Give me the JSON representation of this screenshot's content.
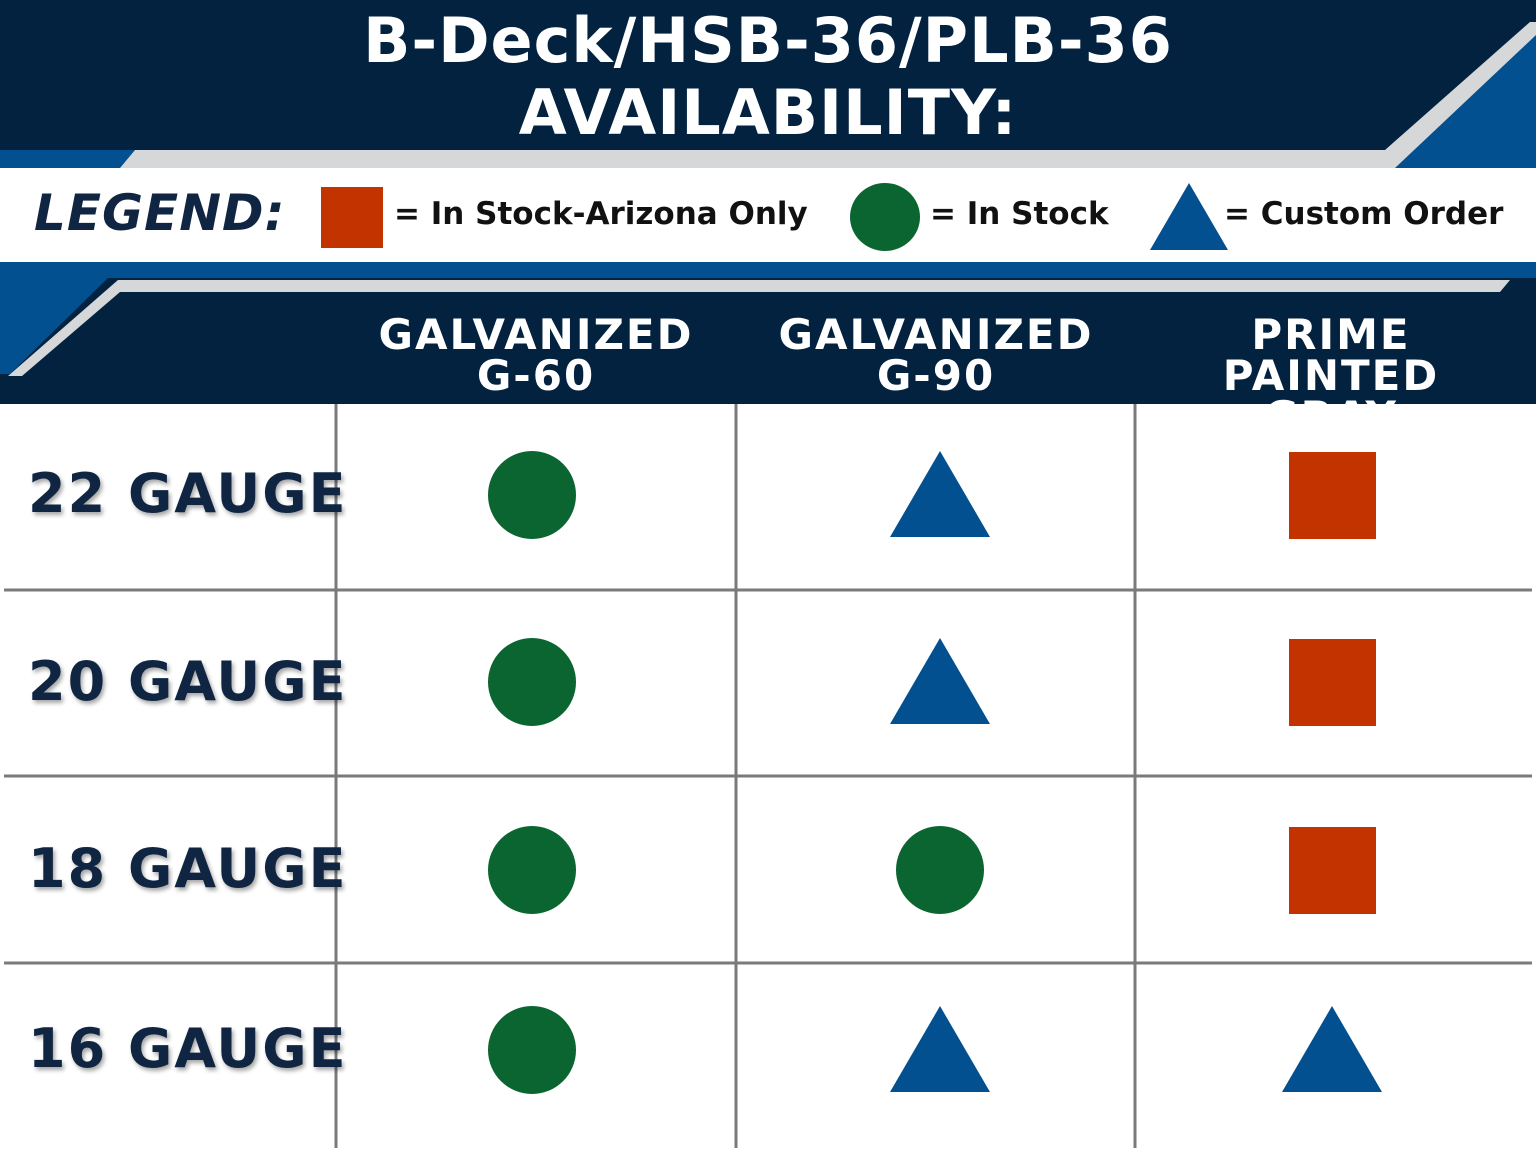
{
  "title": {
    "line1": "B-Deck/HSB-36/PLB-36",
    "line2": "AVAILABILITY:"
  },
  "legend": {
    "label": "LEGEND:",
    "items": [
      {
        "symbol": "square-icon",
        "color": "#c23300",
        "text": "= In Stock-Arizona Only"
      },
      {
        "symbol": "circle-icon",
        "color": "#0b6530",
        "text": "= In Stock"
      },
      {
        "symbol": "triangle-icon",
        "color": "#02508f",
        "text": "= Custom Order"
      }
    ]
  },
  "columns": [
    {
      "line1": "GALVANIZED",
      "line2": "G-60"
    },
    {
      "line1": "GALVANIZED",
      "line2": "G-90"
    },
    {
      "line1": "PRIME PAINTED",
      "line2": "GRAY"
    }
  ],
  "rows": [
    {
      "label": "22 GAUGE",
      "cells": [
        "In Stock",
        "Custom Order",
        "In Stock-Arizona Only"
      ]
    },
    {
      "label": "20 GAUGE",
      "cells": [
        "In Stock",
        "Custom Order",
        "In Stock-Arizona Only"
      ]
    },
    {
      "label": "18 GAUGE",
      "cells": [
        "In Stock",
        "In Stock",
        "In Stock-Arizona Only"
      ]
    },
    {
      "label": "16 GAUGE",
      "cells": [
        "In Stock",
        "Custom Order",
        "Custom Order"
      ]
    }
  ],
  "colors": {
    "navy": "#03223f",
    "blue": "#02508f",
    "gray_stripe": "#d5d7d9",
    "in_stock": "#0b6530",
    "arizona_only": "#c23300",
    "custom_order": "#02508f"
  }
}
